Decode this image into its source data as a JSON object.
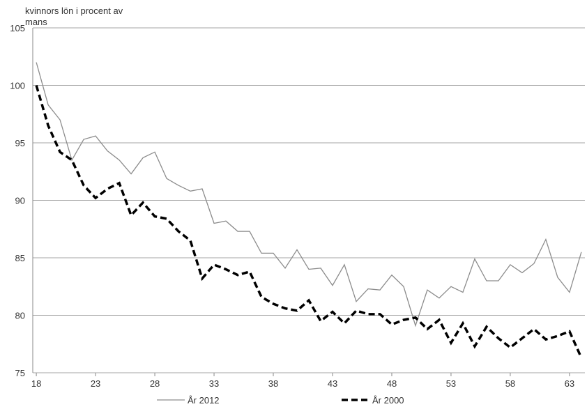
{
  "chart_data": {
    "type": "line",
    "title": "kvinnors lön i procent av mans",
    "x": [
      18,
      19,
      20,
      21,
      22,
      23,
      24,
      25,
      26,
      27,
      28,
      29,
      30,
      31,
      32,
      33,
      34,
      35,
      36,
      37,
      38,
      39,
      40,
      41,
      42,
      43,
      44,
      45,
      46,
      47,
      48,
      49,
      50,
      51,
      52,
      53,
      54,
      55,
      56,
      57,
      58,
      59,
      60,
      61,
      62,
      63,
      64
    ],
    "series": [
      {
        "name": "År 2012",
        "color": "#8c8c8c",
        "dash": false,
        "values": [
          102,
          98.3,
          97,
          93.5,
          95.3,
          95.6,
          94.3,
          93.5,
          92.3,
          93.7,
          94.2,
          91.9,
          91.3,
          90.8,
          91,
          88,
          88.2,
          87.3,
          87.3,
          85.4,
          85.4,
          84.1,
          85.7,
          84,
          84.1,
          82.6,
          84.4,
          81.2,
          82.3,
          82.2,
          83.5,
          82.5,
          79.1,
          82.2,
          81.5,
          82.5,
          82,
          84.9,
          83,
          83,
          84.4,
          83.7,
          84.5,
          86.6,
          83.3,
          82,
          85.5
        ]
      },
      {
        "name": "År 2000",
        "color": "#000000",
        "dash": true,
        "values": [
          100,
          96.5,
          94.2,
          93.5,
          91.3,
          90.2,
          91,
          91.5,
          88.7,
          89.8,
          88.6,
          88.4,
          87.3,
          86.5,
          83.2,
          84.4,
          84,
          83.5,
          83.8,
          81.6,
          81,
          80.6,
          80.4,
          81.3,
          79.5,
          80.3,
          79.3,
          80.4,
          80.1,
          80.1,
          79.2,
          79.6,
          79.8,
          78.8,
          79.6,
          77.6,
          79.3,
          77.3,
          79,
          78,
          77.2,
          78,
          78.8,
          77.9,
          78.2,
          78.6,
          76.3
        ]
      }
    ],
    "xlim": [
      17.7,
      64.3
    ],
    "xticks": [
      18,
      23,
      28,
      33,
      38,
      43,
      48,
      53,
      58,
      63
    ],
    "ylim": [
      75,
      105
    ],
    "yticks": [
      75,
      80,
      85,
      90,
      95,
      100,
      105
    ],
    "grid": true
  }
}
